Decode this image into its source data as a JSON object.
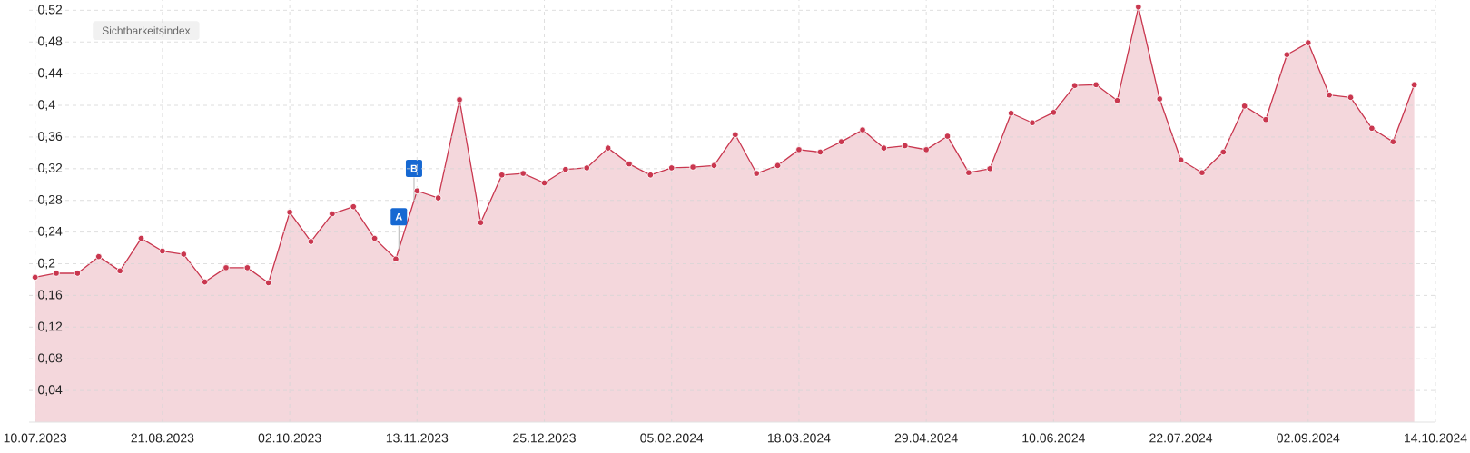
{
  "chart_data": {
    "type": "area",
    "title": "Sichtbarkeitsindex",
    "x": [
      "2023-07-10",
      "2023-07-17",
      "2023-07-24",
      "2023-07-31",
      "2023-08-07",
      "2023-08-14",
      "2023-08-21",
      "2023-08-28",
      "2023-09-04",
      "2023-09-11",
      "2023-09-18",
      "2023-09-25",
      "2023-10-02",
      "2023-10-09",
      "2023-10-16",
      "2023-10-23",
      "2023-10-30",
      "2023-11-06",
      "2023-11-13",
      "2023-11-20",
      "2023-11-27",
      "2023-12-04",
      "2023-12-11",
      "2023-12-18",
      "2023-12-25",
      "2024-01-01",
      "2024-01-08",
      "2024-01-15",
      "2024-01-22",
      "2024-01-29",
      "2024-02-05",
      "2024-02-12",
      "2024-02-19",
      "2024-02-26",
      "2024-03-04",
      "2024-03-11",
      "2024-03-18",
      "2024-03-25",
      "2024-04-01",
      "2024-04-08",
      "2024-04-15",
      "2024-04-22",
      "2024-04-29",
      "2024-05-06",
      "2024-05-13",
      "2024-05-20",
      "2024-05-27",
      "2024-06-03",
      "2024-06-10",
      "2024-06-17",
      "2024-06-24",
      "2024-07-01",
      "2024-07-08",
      "2024-07-15",
      "2024-07-22",
      "2024-07-29",
      "2024-08-05",
      "2024-08-12",
      "2024-08-19",
      "2024-08-26",
      "2024-09-02",
      "2024-09-09",
      "2024-09-16",
      "2024-09-23",
      "2024-09-30",
      "2024-10-07"
    ],
    "values": [
      0.183,
      0.188,
      0.188,
      0.209,
      0.191,
      0.232,
      0.216,
      0.212,
      0.177,
      0.195,
      0.195,
      0.176,
      0.265,
      0.228,
      0.263,
      0.272,
      0.232,
      0.206,
      0.292,
      0.283,
      0.407,
      0.252,
      0.312,
      0.314,
      0.302,
      0.319,
      0.321,
      0.346,
      0.326,
      0.312,
      0.321,
      0.322,
      0.324,
      0.363,
      0.314,
      0.324,
      0.344,
      0.341,
      0.354,
      0.369,
      0.346,
      0.349,
      0.344,
      0.361,
      0.315,
      0.32,
      0.39,
      0.378,
      0.391,
      0.425,
      0.426,
      0.406,
      0.524,
      0.408,
      0.331,
      0.315,
      0.341,
      0.399,
      0.382,
      0.464,
      0.479,
      0.413,
      0.41,
      0.371,
      0.354,
      0.426
    ],
    "color": "#c9374f",
    "marker": "circle",
    "line_style": "solid",
    "grid": true,
    "xlim": [
      "2023-07-08",
      "2024-10-14"
    ],
    "xticks": [
      {
        "value": "2023-07-10",
        "label": "10.07.2023"
      },
      {
        "value": "2023-08-21",
        "label": "21.08.2023"
      },
      {
        "value": "2023-10-02",
        "label": "02.10.2023"
      },
      {
        "value": "2023-11-13",
        "label": "13.11.2023"
      },
      {
        "value": "2023-12-25",
        "label": "25.12.2023"
      },
      {
        "value": "2024-02-05",
        "label": "05.02.2024"
      },
      {
        "value": "2024-03-18",
        "label": "18.03.2024"
      },
      {
        "value": "2024-04-29",
        "label": "29.04.2024"
      },
      {
        "value": "2024-06-10",
        "label": "10.06.2024"
      },
      {
        "value": "2024-07-22",
        "label": "22.07.2024"
      },
      {
        "value": "2024-09-02",
        "label": "02.09.2024"
      },
      {
        "value": "2024-10-14",
        "label": "14.10.2024"
      }
    ],
    "ylim": [
      0,
      0.533
    ],
    "yticks": [
      {
        "value": 0.04,
        "label": "0,04"
      },
      {
        "value": 0.08,
        "label": "0,08"
      },
      {
        "value": 0.12,
        "label": "0,12"
      },
      {
        "value": 0.16,
        "label": "0,16"
      },
      {
        "value": 0.2,
        "label": "0,2"
      },
      {
        "value": 0.24,
        "label": "0,24"
      },
      {
        "value": 0.28,
        "label": "0,28"
      },
      {
        "value": 0.32,
        "label": "0,32"
      },
      {
        "value": 0.36,
        "label": "0,36"
      },
      {
        "value": 0.4,
        "label": "0,4"
      },
      {
        "value": 0.44,
        "label": "0,44"
      },
      {
        "value": 0.48,
        "label": "0,48"
      },
      {
        "value": 0.52,
        "label": "0,52"
      }
    ],
    "annotations": [
      {
        "text": "A",
        "x": "2023-11-07",
        "y": 0.218
      },
      {
        "text": "B",
        "x": "2023-11-12",
        "y": 0.279
      }
    ]
  }
}
